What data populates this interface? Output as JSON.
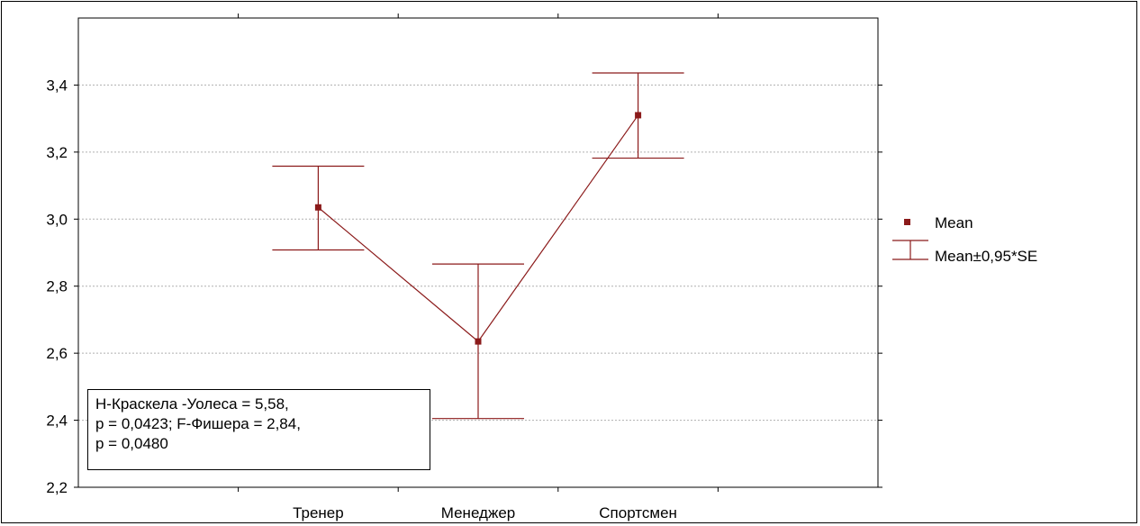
{
  "chart_data": {
    "type": "line",
    "categories": [
      "Тренер",
      "Менеджер",
      "Спортсмен"
    ],
    "series": [
      {
        "name": "Mean",
        "values": [
          3.035,
          2.635,
          3.31
        ],
        "lower": [
          2.908,
          2.405,
          3.182
        ],
        "upper": [
          3.158,
          2.866,
          3.436
        ]
      }
    ],
    "ylim": [
      2.2,
      3.6
    ],
    "yticks": [
      "2,2",
      "2,4",
      "2,6",
      "2,8",
      "3,0",
      "3,2",
      "3,4"
    ],
    "ytick_values": [
      2.2,
      2.4,
      2.6,
      2.8,
      3.0,
      3.2,
      3.4
    ],
    "grid": true,
    "legend": {
      "placement": "right",
      "entries": [
        "Mean",
        "Mean±0,95*SE"
      ]
    },
    "annotation": [
      "H-Краскела -Уолеса = 5,58,",
      "p = 0,0423; F-Фишера = 2,84,",
      "p = 0,0480"
    ],
    "colors": {
      "series": "#8b1a1a",
      "grid": "#b0b0b0",
      "axis": "#000000"
    }
  }
}
